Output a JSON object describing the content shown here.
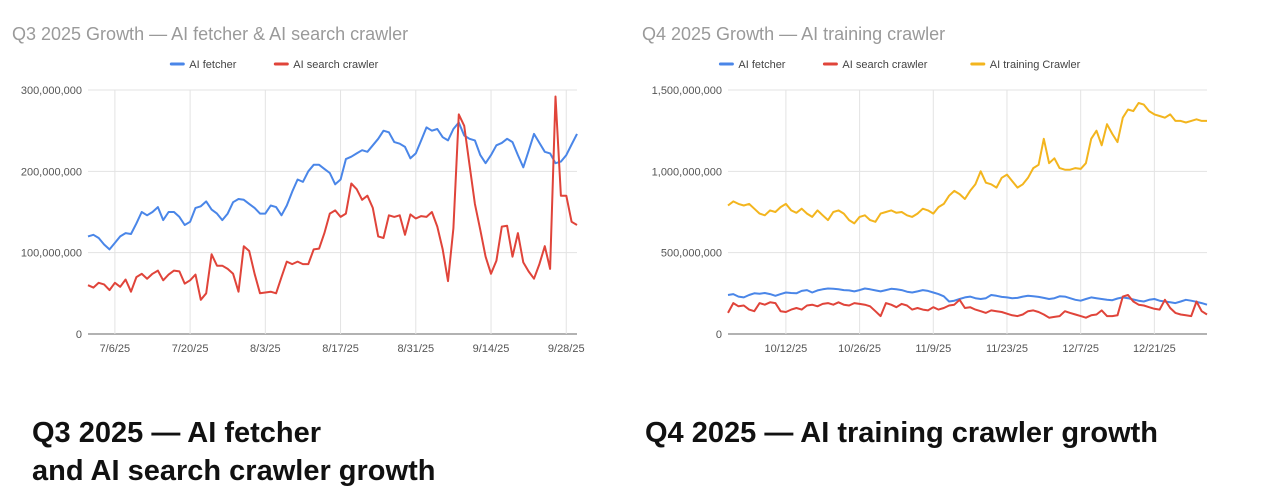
{
  "chart_data": [
    {
      "type": "line",
      "title": "Q3 2025 Growth — AI fetcher & AI search crawler",
      "xlabel": "",
      "ylabel": "",
      "ylim": [
        0,
        300000000
      ],
      "yticks": [
        "0",
        "100,000,000",
        "200,000,000",
        "300,000,000"
      ],
      "xticks": [
        "7/6/25",
        "7/20/25",
        "8/3/25",
        "8/17/25",
        "8/31/25",
        "9/14/25",
        "9/28/25"
      ],
      "x_start": "7/1/25",
      "x_end": "9/30/25",
      "grid": true,
      "legend": "top-center",
      "series": [
        {
          "name": "AI fetcher",
          "color": "#4a86e8",
          "values": [
            120,
            122,
            118,
            110,
            104,
            112,
            120,
            124,
            123,
            136,
            150,
            146,
            150,
            156,
            140,
            150,
            150,
            144,
            134,
            138,
            155,
            157,
            163,
            153,
            148,
            140,
            148,
            162,
            166,
            165,
            160,
            155,
            148,
            148,
            158,
            156,
            146,
            158,
            175,
            190,
            187,
            200,
            208,
            208,
            203,
            198,
            184,
            190,
            215,
            218,
            222,
            226,
            224,
            232,
            240,
            250,
            248,
            236,
            234,
            230,
            216,
            222,
            238,
            254,
            250,
            252,
            242,
            238,
            252,
            260,
            244,
            240,
            238,
            220,
            210,
            220,
            232,
            235,
            240,
            236,
            220,
            205,
            225,
            246,
            235,
            224,
            222,
            210,
            212,
            220,
            233,
            246
          ]
        },
        {
          "name": "AI search crawler",
          "color": "#e0443a",
          "values": [
            60,
            57,
            63,
            61,
            54,
            63,
            58,
            67,
            52,
            70,
            74,
            68,
            74,
            78,
            66,
            73,
            78,
            77,
            62,
            66,
            73,
            42,
            50,
            98,
            84,
            84,
            80,
            74,
            52,
            108,
            102,
            74,
            50,
            51,
            52,
            50,
            70,
            89,
            86,
            89,
            86,
            86,
            104,
            105,
            124,
            148,
            152,
            144,
            148,
            185,
            178,
            165,
            170,
            155,
            120,
            118,
            146,
            144,
            146,
            122,
            147,
            142,
            145,
            144,
            150,
            132,
            104,
            65,
            130,
            270,
            256,
            208,
            160,
            128,
            95,
            74,
            90,
            132,
            133,
            95,
            124,
            88,
            77,
            68,
            86,
            108,
            80,
            292,
            170,
            170,
            138,
            134
          ]
        }
      ]
    },
    {
      "type": "line",
      "title": "Q4 2025 Growth — AI training crawler",
      "xlabel": "",
      "ylabel": "",
      "ylim": [
        0,
        1500000000
      ],
      "yticks": [
        "0",
        "500,000,000",
        "1,000,000,000",
        "1,500,000,000"
      ],
      "xticks": [
        "10/12/25",
        "10/26/25",
        "11/9/25",
        "11/23/25",
        "12/7/25",
        "12/21/25"
      ],
      "x_start": "10/1/25",
      "x_end": "12/31/25",
      "grid": true,
      "legend": "top-center",
      "series": [
        {
          "name": "AI fetcher",
          "color": "#4a86e8",
          "values": [
            240,
            245,
            230,
            225,
            240,
            250,
            248,
            252,
            245,
            235,
            245,
            255,
            252,
            250,
            265,
            270,
            255,
            268,
            275,
            280,
            278,
            275,
            270,
            268,
            262,
            270,
            280,
            275,
            268,
            262,
            270,
            278,
            275,
            270,
            260,
            255,
            262,
            270,
            265,
            255,
            245,
            232,
            200,
            205,
            215,
            225,
            230,
            220,
            215,
            220,
            240,
            235,
            228,
            225,
            220,
            222,
            230,
            235,
            232,
            228,
            222,
            215,
            220,
            232,
            230,
            220,
            210,
            205,
            215,
            225,
            220,
            215,
            210,
            208,
            218,
            225,
            220,
            212,
            205,
            200,
            210,
            215,
            205,
            200,
            195,
            190,
            200,
            210,
            205,
            198,
            190,
            180
          ]
        },
        {
          "name": "AI search crawler",
          "color": "#e0443a",
          "values": [
            130,
            190,
            170,
            175,
            150,
            140,
            190,
            180,
            195,
            190,
            140,
            135,
            150,
            160,
            150,
            175,
            180,
            170,
            185,
            190,
            180,
            195,
            180,
            175,
            190,
            185,
            180,
            170,
            140,
            110,
            190,
            180,
            165,
            185,
            175,
            150,
            160,
            150,
            145,
            165,
            150,
            160,
            175,
            180,
            210,
            160,
            165,
            150,
            140,
            130,
            145,
            140,
            135,
            125,
            115,
            110,
            120,
            140,
            145,
            135,
            120,
            100,
            105,
            110,
            140,
            130,
            120,
            110,
            100,
            115,
            120,
            145,
            110,
            110,
            115,
            230,
            240,
            200,
            180,
            175,
            165,
            155,
            150,
            210,
            160,
            130,
            120,
            115,
            110,
            200,
            140,
            120
          ]
        },
        {
          "name": "AI training Crawler",
          "color": "#f3b51e",
          "values": [
            790,
            815,
            800,
            790,
            800,
            770,
            740,
            730,
            760,
            750,
            780,
            800,
            760,
            745,
            770,
            740,
            720,
            760,
            730,
            700,
            750,
            760,
            740,
            700,
            680,
            720,
            730,
            700,
            690,
            740,
            750,
            760,
            745,
            750,
            730,
            720,
            740,
            770,
            760,
            740,
            780,
            800,
            850,
            880,
            860,
            830,
            880,
            920,
            1000,
            930,
            920,
            900,
            960,
            980,
            940,
            900,
            920,
            960,
            1020,
            1040,
            1200,
            1050,
            1080,
            1020,
            1010,
            1010,
            1020,
            1015,
            1050,
            1200,
            1250,
            1160,
            1290,
            1230,
            1180,
            1330,
            1380,
            1370,
            1420,
            1410,
            1370,
            1350,
            1340,
            1330,
            1350,
            1310,
            1310,
            1300,
            1310,
            1320,
            1310,
            1310
          ]
        }
      ]
    }
  ],
  "captions": {
    "left": [
      "Q3 2025 — AI fetcher",
      "and AI search crawler growth"
    ],
    "right": [
      "Q4 2025 — AI training crawler growth"
    ]
  }
}
